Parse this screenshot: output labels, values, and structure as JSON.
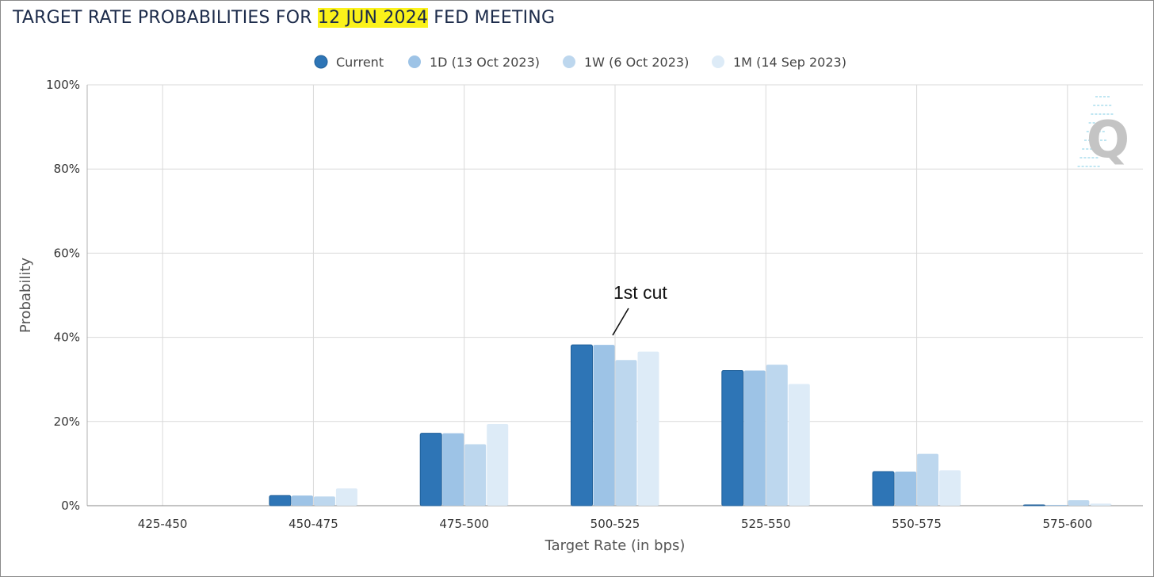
{
  "header": {
    "title_prefix": "TARGET RATE PROBABILITIES FOR ",
    "title_highlight": "12 JUN 2024",
    "title_suffix": " FED MEETING",
    "highlight_color": "#fbf21a"
  },
  "watermark": {
    "letter": "Q",
    "icon": "quikstrike-logo-icon"
  },
  "chart_data": {
    "type": "bar",
    "xlabel": "Target Rate (in bps)",
    "ylabel": "Probability",
    "ylim": [
      0,
      100
    ],
    "yticks": [
      0,
      20,
      40,
      60,
      80,
      100
    ],
    "ytick_labels": [
      "0%",
      "20%",
      "40%",
      "60%",
      "80%",
      "100%"
    ],
    "grid": true,
    "legend_position": "top-center",
    "categories": [
      "425-450",
      "450-475",
      "475-500",
      "500-525",
      "525-550",
      "550-575",
      "575-600"
    ],
    "series": [
      {
        "name": "Current",
        "color": "#2e75b6",
        "values": [
          0,
          2.4,
          17.2,
          38.2,
          32.1,
          8.1,
          0.2
        ]
      },
      {
        "name": "1D (13 Oct 2023)",
        "color": "#9dc3e6",
        "values": [
          0,
          2.4,
          17.2,
          38.2,
          32.1,
          8.1,
          0.2
        ]
      },
      {
        "name": "1W (6 Oct 2023)",
        "color": "#bdd7ee",
        "values": [
          0,
          2.2,
          14.6,
          34.6,
          33.5,
          12.3,
          1.3
        ]
      },
      {
        "name": "1M (14 Sep 2023)",
        "color": "#ddebf7",
        "values": [
          0,
          4.1,
          19.4,
          36.6,
          28.9,
          8.4,
          0.5
        ]
      }
    ],
    "annotation": {
      "text": "1st cut",
      "category": "500-525"
    }
  }
}
